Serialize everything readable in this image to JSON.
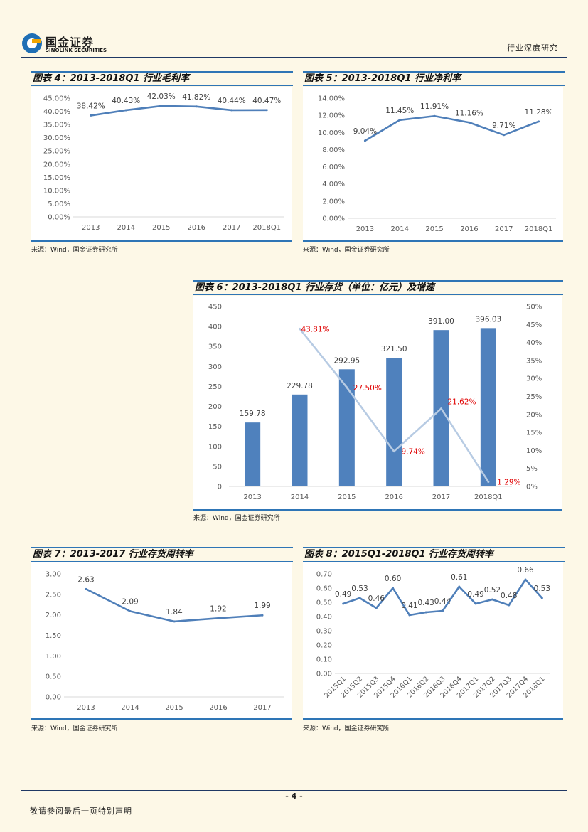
{
  "header": {
    "logo_cn": "国金证券",
    "logo_en": "SINOLINK SECURITIES",
    "report_type": "行业深度研究"
  },
  "colors": {
    "line": "#4f7fb9",
    "bar": "#4f81bd",
    "growth_line": "#b7cbe3",
    "growth_label": "#e00000",
    "accent": "#2e75b6"
  },
  "footer": {
    "page_number": "- 4 -",
    "disclaimer": "敬请参阅最后一页特别声明"
  },
  "chart_data": [
    {
      "id": "fig4",
      "type": "line",
      "title": "图表 4：2013-2018Q1 行业毛利率",
      "source": "来源：Wind，国金证券研究所",
      "categories": [
        "2013",
        "2014",
        "2015",
        "2016",
        "2017",
        "2018Q1"
      ],
      "values": [
        38.42,
        40.43,
        42.03,
        41.82,
        40.44,
        40.47
      ],
      "value_labels": [
        "38.42%",
        "40.43%",
        "42.03%",
        "41.82%",
        "40.44%",
        "40.47%"
      ],
      "ylim": [
        0,
        45
      ],
      "yticks": [
        "0.00%",
        "5.00%",
        "10.00%",
        "15.00%",
        "20.00%",
        "25.00%",
        "30.00%",
        "35.00%",
        "40.00%",
        "45.00%"
      ]
    },
    {
      "id": "fig5",
      "type": "line",
      "title": "图表 5：2013-2018Q1 行业净利率",
      "source": "来源：Wind，国金证券研究所",
      "categories": [
        "2013",
        "2014",
        "2015",
        "2016",
        "2017",
        "2018Q1"
      ],
      "values": [
        9.04,
        11.45,
        11.91,
        11.16,
        9.71,
        11.28
      ],
      "value_labels": [
        "9.04%",
        "11.45%",
        "11.91%",
        "11.16%",
        "9.71%",
        "11.28%"
      ],
      "ylim": [
        0,
        14
      ],
      "yticks": [
        "0.00%",
        "2.00%",
        "4.00%",
        "6.00%",
        "8.00%",
        "10.00%",
        "12.00%",
        "14.00%"
      ]
    },
    {
      "id": "fig6",
      "type": "bar",
      "title": "图表 6：2013-2018Q1 行业存货（单位：亿元）及增速",
      "source": "来源：Wind，国金证券研究所",
      "categories": [
        "2013",
        "2014",
        "2015",
        "2016",
        "2017",
        "2018Q1"
      ],
      "series": [
        {
          "name": "存货",
          "values": [
            159.78,
            229.78,
            292.95,
            321.5,
            391.0,
            396.03
          ],
          "value_labels": [
            "159.78",
            "229.78",
            "292.95",
            "321.50",
            "391.00",
            "396.03"
          ]
        },
        {
          "name": "增速",
          "values": [
            null,
            43.81,
            27.5,
            9.74,
            21.62,
            1.29
          ],
          "value_labels": [
            "",
            "43.81%",
            "27.50%",
            "9.74%",
            "21.62%",
            "1.29%"
          ]
        }
      ],
      "ylim": [
        0,
        450
      ],
      "yticks": [
        "0",
        "50",
        "100",
        "150",
        "200",
        "250",
        "300",
        "350",
        "400",
        "450"
      ],
      "y2lim": [
        0,
        50
      ],
      "y2ticks": [
        "0%",
        "5%",
        "10%",
        "15%",
        "20%",
        "25%",
        "30%",
        "35%",
        "40%",
        "45%",
        "50%"
      ]
    },
    {
      "id": "fig7",
      "type": "line",
      "title": "图表 7：2013-2017 行业存货周转率",
      "source": "来源：Wind，国金证券研究所",
      "categories": [
        "2013",
        "2014",
        "2015",
        "2016",
        "2017"
      ],
      "values": [
        2.63,
        2.09,
        1.84,
        1.92,
        1.99
      ],
      "value_labels": [
        "2.63",
        "2.09",
        "1.84",
        "1.92",
        "1.99"
      ],
      "ylim": [
        0,
        3
      ],
      "yticks": [
        "0.00",
        "0.50",
        "1.00",
        "1.50",
        "2.00",
        "2.50",
        "3.00"
      ]
    },
    {
      "id": "fig8",
      "type": "line",
      "title": "图表 8：2015Q1-2018Q1 行业存货周转率",
      "source": "来源：Wind，国金证券研究所",
      "categories": [
        "2015Q1",
        "2015Q2",
        "2015Q3",
        "2015Q4",
        "2016Q1",
        "2016Q2",
        "2016Q3",
        "2016Q4",
        "2017Q1",
        "2017Q2",
        "2017Q3",
        "2017Q4",
        "2018Q1"
      ],
      "values": [
        0.49,
        0.53,
        0.46,
        0.6,
        0.41,
        0.43,
        0.44,
        0.61,
        0.49,
        0.52,
        0.48,
        0.66,
        0.53
      ],
      "value_labels": [
        "0.49",
        "0.53",
        "0.46",
        "0.60",
        "0.41",
        "0.43",
        "0.44",
        "0.61",
        "0.49",
        "0.52",
        "0.48",
        "0.66",
        "0.53"
      ],
      "ylim": [
        0,
        0.7
      ],
      "yticks": [
        "0.00",
        "0.10",
        "0.20",
        "0.30",
        "0.40",
        "0.50",
        "0.60",
        "0.70"
      ]
    }
  ]
}
